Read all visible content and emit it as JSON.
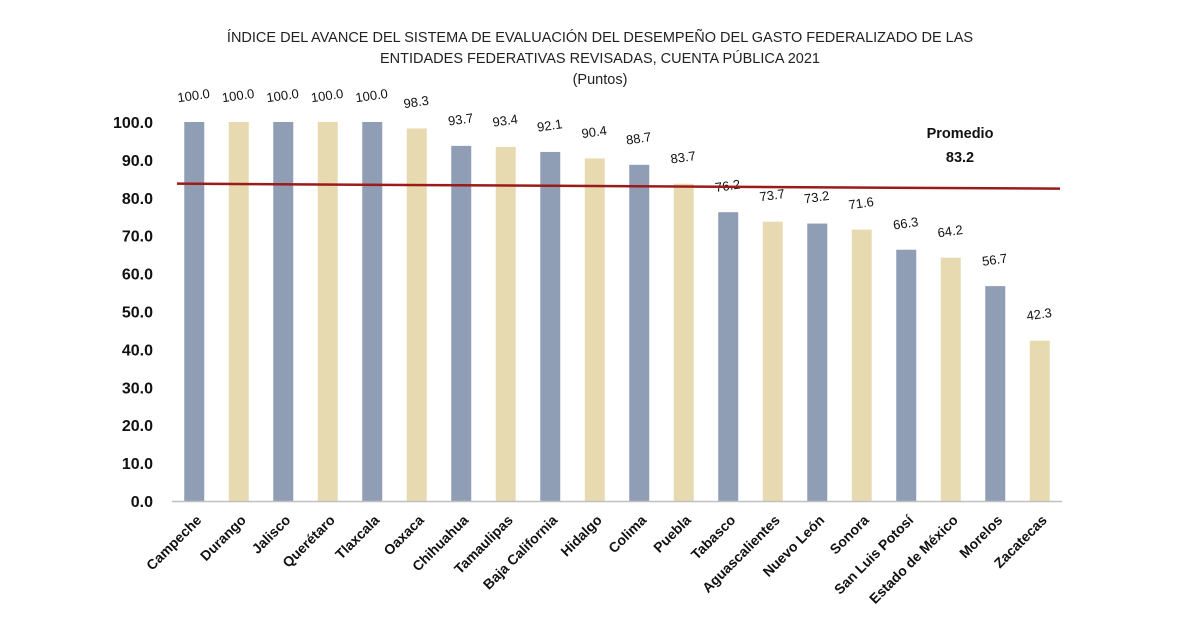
{
  "chart_data": {
    "type": "bar",
    "title_line1": "ÍNDICE DEL AVANCE DEL SISTEMA DE EVALUACIÓN DEL DESEMPEÑO DEL GASTO FEDERALIZADO DE LAS",
    "title_line2": "ENTIDADES FEDERATIVAS REVISADAS, CUENTA PÚBLICA 2021",
    "subtitle": "(Puntos)",
    "categories": [
      "Campeche",
      "Durango",
      "Jalisco",
      "Querétaro",
      "Tlaxcala",
      "Oaxaca",
      "Chihuahua",
      "Tamaulipas",
      "Baja California",
      "Hidalgo",
      "Colima",
      "Puebla",
      "Tabasco",
      "Aguascalientes",
      "Nuevo León",
      "Sonora",
      "San Luis Potosí",
      "Estado de México",
      "Morelos",
      "Zacatecas"
    ],
    "values": [
      100.0,
      100.0,
      100.0,
      100.0,
      100.0,
      98.3,
      93.7,
      93.4,
      92.1,
      90.4,
      88.7,
      83.7,
      76.2,
      73.7,
      73.2,
      71.6,
      66.3,
      64.2,
      56.7,
      42.3
    ],
    "value_labels": [
      "100.0",
      "100.0",
      "100.0",
      "100.0",
      "100.0",
      "98.3",
      "93.7",
      "93.4",
      "92.1",
      "90.4",
      "88.7",
      "83.7",
      "76.2",
      "73.7",
      "73.2",
      "71.6",
      "66.3",
      "64.2",
      "56.7",
      "42.3"
    ],
    "ylim": [
      0,
      100
    ],
    "yticks": [
      "0.0",
      "10.0",
      "20.0",
      "30.0",
      "40.0",
      "50.0",
      "60.0",
      "70.0",
      "80.0",
      "90.0",
      "100.0"
    ],
    "grid": false,
    "average": {
      "label": "Promedio",
      "value": 83.2,
      "value_label": "83.2"
    },
    "colors": {
      "bar_a": "#8f9db5",
      "bar_b": "#e8dab0",
      "average_line": "#9b1b1b",
      "axis": "#bfbfbf"
    }
  }
}
